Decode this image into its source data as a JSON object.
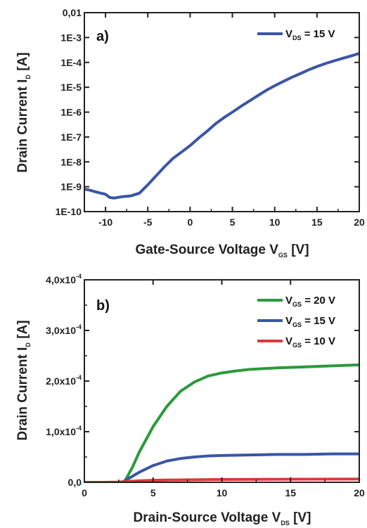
{
  "chart_data": [
    {
      "type": "line",
      "panel_label": "a)",
      "xlabel": "Gate-Source Voltage V_GS [V]",
      "xlabel_main": "Gate-Source Voltage V",
      "xlabel_sub": "GS",
      "xlabel_unit": "[V]",
      "ylabel": "Drain Current I_D [A]",
      "ylabel_main": "Drain Current I",
      "ylabel_sub": "D",
      "ylabel_unit": "[A]",
      "xlim": [
        -12.5,
        20
      ],
      "ylim": [
        1e-10,
        0.01
      ],
      "yscale": "log",
      "x_ticks": [
        -10,
        -5,
        0,
        5,
        10,
        15,
        20
      ],
      "x_tick_labels": [
        "-10",
        "-5",
        "0",
        "5",
        "10",
        "15",
        "20"
      ],
      "y_ticks": [
        1e-10,
        1e-09,
        1e-08,
        1e-07,
        1e-06,
        1e-05,
        0.0001,
        0.001,
        0.01
      ],
      "y_tick_labels": [
        "1E-10",
        "1E-9",
        "1E-8",
        "1E-7",
        "1E-6",
        "1E-5",
        "1E-4",
        "1E-3",
        "0,01"
      ],
      "legend_position": "top-right",
      "series": [
        {
          "name": "V_DS = 15 V",
          "label_main": "V",
          "label_sub": "DS",
          "label_rest": " = 15 V",
          "color": "#3a55a8",
          "x": [
            -12.5,
            -12,
            -11,
            -10,
            -9.5,
            -9,
            -8,
            -7,
            -6,
            -5,
            -4,
            -3,
            -2,
            -1,
            0,
            1,
            2,
            3,
            4,
            5,
            6,
            7,
            8,
            9,
            10,
            11,
            12,
            13,
            14,
            15,
            16,
            17,
            18,
            19,
            20
          ],
          "y": [
            8e-10,
            7.5e-10,
            6e-10,
            5e-10,
            3.7e-10,
            3.5e-10,
            4e-10,
            4.3e-10,
            5.5e-10,
            1.2e-09,
            2.8e-09,
            6.5e-09,
            1.4e-08,
            2.5e-08,
            4.5e-08,
            9e-08,
            1.7e-07,
            3.4e-07,
            6e-07,
            1e-06,
            1.7e-06,
            2.8e-06,
            4.6e-06,
            7.5e-06,
            1.15e-05,
            1.7e-05,
            2.5e-05,
            3.5e-05,
            5e-05,
            6.8e-05,
            9e-05,
            0.000115,
            0.000145,
            0.00018,
            0.00023
          ]
        }
      ]
    },
    {
      "type": "line",
      "panel_label": "b)",
      "xlabel": "Drain-Source Voltage V_DS [V]",
      "xlabel_main": "Drain-Source Voltage V",
      "xlabel_sub": "DS",
      "xlabel_unit": "[V]",
      "ylabel": "Drain Current I_D [A]",
      "ylabel_main": "Drain Current I",
      "ylabel_sub": "D",
      "ylabel_unit": "[A]",
      "xlim": [
        0,
        20
      ],
      "ylim": [
        0,
        0.0004
      ],
      "x_ticks": [
        0,
        5,
        10,
        15,
        20
      ],
      "x_tick_labels": [
        "0",
        "5",
        "10",
        "15",
        "20"
      ],
      "y_ticks": [
        0,
        0.0001,
        0.0002,
        0.0003,
        0.0004
      ],
      "y_tick_labels": [
        {
          "main": "0,0",
          "exp": ""
        },
        {
          "main": "1,0x10",
          "exp": "-4"
        },
        {
          "main": "2,0x10",
          "exp": "-4"
        },
        {
          "main": "3,0x10",
          "exp": "-4"
        },
        {
          "main": "4,0x10",
          "exp": "-4"
        }
      ],
      "legend_position": "top-right",
      "series": [
        {
          "name": "V_GS = 20 V",
          "label_main": "V",
          "label_sub": "GS",
          "label_rest": " = 20 V",
          "color": "#2a9a3c",
          "x": [
            2,
            2.8,
            3,
            3.5,
            4,
            4.5,
            5,
            6,
            7,
            8,
            9,
            10,
            11,
            12,
            14,
            16,
            18,
            20
          ],
          "y": [
            0,
            0,
            5e-06,
            3e-05,
            6e-05,
            8.5e-05,
            0.00011,
            0.00015,
            0.00018,
            0.000198,
            0.00021,
            0.000216,
            0.00022,
            0.000223,
            0.000226,
            0.000228,
            0.00023,
            0.000232
          ]
        },
        {
          "name": "V_GS = 15 V",
          "label_main": "V",
          "label_sub": "GS",
          "label_rest": " = 15 V",
          "color": "#3a55a8",
          "x": [
            2,
            2.8,
            3,
            4,
            5,
            6,
            7,
            8,
            9,
            10,
            12,
            14,
            16,
            18,
            20
          ],
          "y": [
            0,
            0,
            4e-06,
            2e-05,
            3.3e-05,
            4.2e-05,
            4.7e-05,
            5e-05,
            5.2e-05,
            5.3e-05,
            5.4e-05,
            5.5e-05,
            5.5e-05,
            5.6e-05,
            5.6e-05
          ]
        },
        {
          "name": "V_GS = 10 V",
          "label_main": "V",
          "label_sub": "GS",
          "label_rest": " = 10 V",
          "color": "#d93a3a",
          "x": [
            0,
            1.5,
            2.5,
            3,
            4,
            5,
            6,
            8,
            10,
            12,
            15,
            20
          ],
          "y": [
            0,
            0,
            5e-07,
            1.5e-06,
            3e-06,
            4e-06,
            4.5e-06,
            5e-06,
            5.5e-06,
            5.8e-06,
            6e-06,
            6.5e-06
          ]
        }
      ]
    }
  ]
}
